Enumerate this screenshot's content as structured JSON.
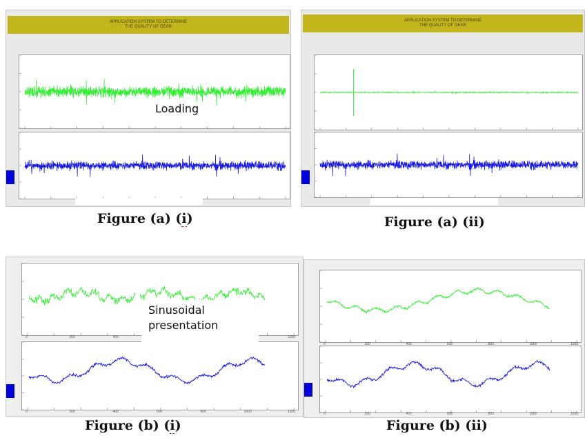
{
  "colors": {
    "green_signal": "#33ee33",
    "blue_signal": "#1a1adf",
    "banner": "#c3b61c"
  },
  "panels": {
    "a_i": {
      "banner_title": "APPLICATION SYSTEM TO DETERMINE\nTHE QUALITY OF GEAR",
      "overlay_label": "Loading",
      "caption_main": "Figure (a) (",
      "caption_mark": "i",
      "caption_end": ")"
    },
    "a_ii": {
      "banner_title": "APPLICATION SYSTEM TO DETERMINE\nTHE QUALITY OF GEAR",
      "caption_main": "Figure (a) (ii)"
    },
    "b_i": {
      "overlay_line1": "Sinusoidal",
      "overlay_line2": "presentation",
      "caption_main": "Figure (b) (",
      "caption_mark": "i",
      "caption_end": ")",
      "x_ticks": [
        "0",
        "200",
        "400",
        "600",
        "800",
        "1000",
        "1200"
      ]
    },
    "b_ii": {
      "caption_main": "Figure (b) (ii)",
      "x_ticks": [
        "0",
        "200",
        "400",
        "600",
        "800",
        "1000",
        "1200"
      ]
    }
  }
}
